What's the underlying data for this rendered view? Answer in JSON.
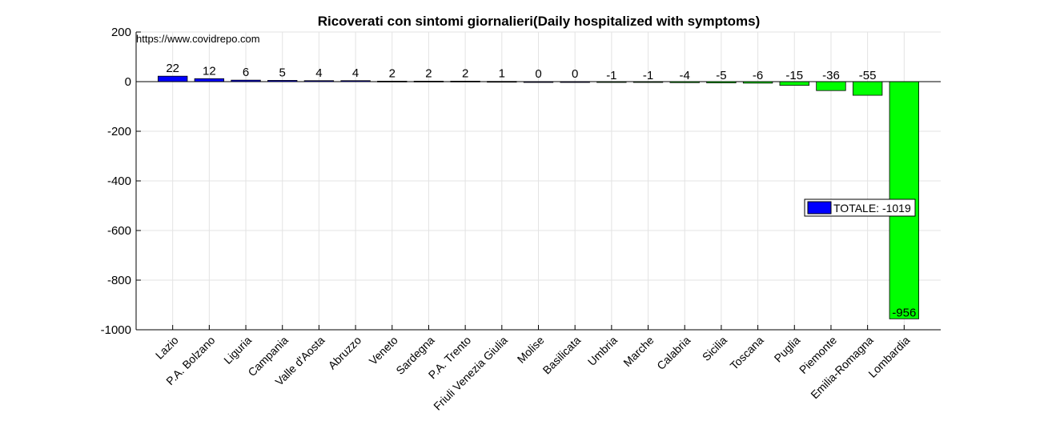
{
  "chart_data": {
    "type": "bar",
    "title": "Ricoverati con sintomi giornalieri(Daily hospitalized with symptoms)",
    "annotation": "https://www.covidrepo.com",
    "categories": [
      "Lazio",
      "P.A. Bolzano",
      "Liguria",
      "Campania",
      "Valle d'Aosta",
      "Abruzzo",
      "Veneto",
      "Sardegna",
      "P.A. Trento",
      "Friuli Venezia Giulia",
      "Molise",
      "Basilicata",
      "Umbria",
      "Marche",
      "Calabria",
      "Sicilia",
      "Toscana",
      "Puglia",
      "Piemonte",
      "Emilia-Romagna",
      "Lombardia"
    ],
    "values": [
      22,
      12,
      6,
      5,
      4,
      4,
      2,
      2,
      2,
      1,
      0,
      0,
      -1,
      -1,
      -4,
      -5,
      -6,
      -15,
      -36,
      -55,
      -956
    ],
    "ylim": [
      -1000,
      200
    ],
    "yticks": [
      -1000,
      -800,
      -600,
      -400,
      -200,
      0,
      200
    ],
    "grid": true,
    "colors": {
      "positive": "#0000ff",
      "negative": "#00ff00"
    },
    "legend": {
      "label": "TOTALE: -1019",
      "color": "#0000ff",
      "position": "right"
    }
  }
}
